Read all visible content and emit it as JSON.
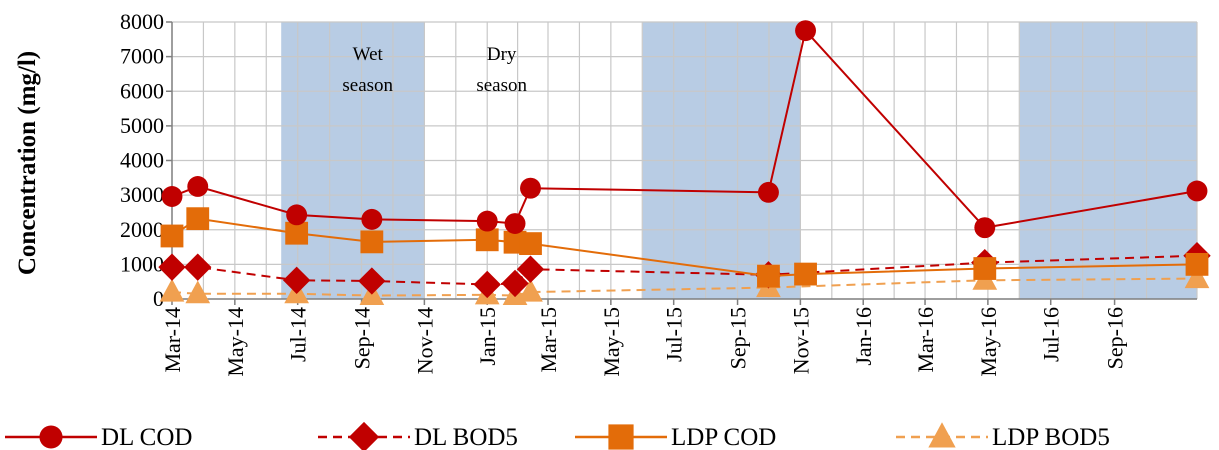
{
  "chart_data": {
    "type": "line",
    "ylabel": "Concentration (mg/l)",
    "xlabel": "",
    "ylim": [
      0,
      8000
    ],
    "y_ticks": [
      0,
      1000,
      2000,
      3000,
      4000,
      5000,
      6000,
      7000,
      8000
    ],
    "y_tick_labels": [
      "0",
      "1000",
      "2000",
      "3000",
      "4000",
      "5000",
      "6000",
      "7000",
      "8000"
    ],
    "xlim": [
      "2014-03-01",
      "2016-11-20"
    ],
    "x_ticks": [
      "2014-03-01",
      "2014-05-01",
      "2014-07-01",
      "2014-09-01",
      "2014-11-01",
      "2015-01-01",
      "2015-03-01",
      "2015-05-01",
      "2015-07-01",
      "2015-09-01",
      "2015-11-01",
      "2016-01-01",
      "2016-03-01",
      "2016-05-01",
      "2016-07-01",
      "2016-09-01"
    ],
    "x_tick_labels": [
      "Mar-14",
      "May-14",
      "Jul-14",
      "Sep-14",
      "Nov-14",
      "Jan-15",
      "Mar-15",
      "May-15",
      "Jul-15",
      "Sep-15",
      "Nov-15",
      "Jan-16",
      "Mar-16",
      "May-16",
      "Jul-16",
      "Sep-16"
    ],
    "grid": true,
    "legend_position": "bottom",
    "shaded_periods": [
      {
        "start": "2014-06-15",
        "end": "2014-11-01"
      },
      {
        "start": "2015-06-01",
        "end": "2015-11-01"
      },
      {
        "start": "2016-06-01",
        "end": "2016-11-20"
      }
    ],
    "annotations": [
      {
        "lines": [
          "Wet",
          "season"
        ],
        "x": "2014-09-07",
        "y": 6900
      },
      {
        "lines": [
          "Dry",
          "season"
        ],
        "x": "2015-01-15",
        "y": 6900
      }
    ],
    "series": [
      {
        "name": "DL  COD",
        "color": "#C00000",
        "dashed": false,
        "marker": "circle",
        "points": [
          {
            "x": "2014-03-01",
            "y": 2960
          },
          {
            "x": "2014-03-26",
            "y": 3250
          },
          {
            "x": "2014-06-30",
            "y": 2430
          },
          {
            "x": "2014-09-11",
            "y": 2300
          },
          {
            "x": "2015-01-01",
            "y": 2250
          },
          {
            "x": "2015-01-28",
            "y": 2180
          },
          {
            "x": "2015-02-12",
            "y": 3200
          },
          {
            "x": "2015-10-01",
            "y": 3080
          },
          {
            "x": "2015-11-06",
            "y": 7750
          },
          {
            "x": "2016-04-28",
            "y": 2060
          },
          {
            "x": "2016-11-20",
            "y": 3120
          }
        ]
      },
      {
        "name": "DL  BOD5",
        "color": "#C00000",
        "dashed": true,
        "marker": "diamond",
        "points": [
          {
            "x": "2014-03-01",
            "y": 920
          },
          {
            "x": "2014-03-26",
            "y": 920
          },
          {
            "x": "2014-06-30",
            "y": 540
          },
          {
            "x": "2014-09-11",
            "y": 520
          },
          {
            "x": "2015-01-01",
            "y": 420
          },
          {
            "x": "2015-01-28",
            "y": 450
          },
          {
            "x": "2015-02-12",
            "y": 860
          },
          {
            "x": "2015-10-01",
            "y": 700
          },
          {
            "x": "2016-04-28",
            "y": 1050
          },
          {
            "x": "2016-11-20",
            "y": 1250
          }
        ]
      },
      {
        "name": "LDP  COD",
        "color": "#E36C09",
        "dashed": false,
        "marker": "square",
        "points": [
          {
            "x": "2014-03-01",
            "y": 1820
          },
          {
            "x": "2014-03-26",
            "y": 2320
          },
          {
            "x": "2014-06-30",
            "y": 1900
          },
          {
            "x": "2014-09-11",
            "y": 1650
          },
          {
            "x": "2015-01-01",
            "y": 1710
          },
          {
            "x": "2015-01-28",
            "y": 1640
          },
          {
            "x": "2015-02-12",
            "y": 1600
          },
          {
            "x": "2015-10-01",
            "y": 660
          },
          {
            "x": "2015-11-06",
            "y": 720
          },
          {
            "x": "2016-04-28",
            "y": 880
          },
          {
            "x": "2016-11-20",
            "y": 1000
          }
        ]
      },
      {
        "name": "LDP  BOD5",
        "color": "#F0A050",
        "dashed": true,
        "marker": "triangle",
        "points": [
          {
            "x": "2014-03-01",
            "y": 200
          },
          {
            "x": "2014-03-26",
            "y": 150
          },
          {
            "x": "2014-06-30",
            "y": 150
          },
          {
            "x": "2014-09-11",
            "y": 100
          },
          {
            "x": "2015-01-01",
            "y": 120
          },
          {
            "x": "2015-01-28",
            "y": 100
          },
          {
            "x": "2015-02-12",
            "y": 200
          },
          {
            "x": "2015-10-01",
            "y": 330
          },
          {
            "x": "2016-04-28",
            "y": 540
          },
          {
            "x": "2016-11-20",
            "y": 590
          }
        ]
      }
    ]
  }
}
